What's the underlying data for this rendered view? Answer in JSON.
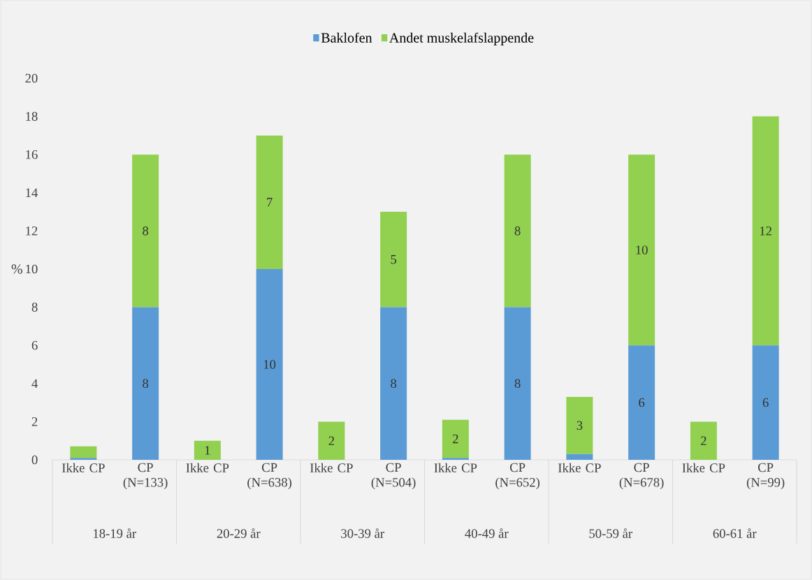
{
  "chart_data": {
    "type": "bar",
    "stacked": true,
    "ylabel": "%",
    "categories": [
      "Ikke CP",
      "CP (N=133)",
      "Ikke CP",
      "CP (N=638)",
      "Ikke CP",
      "CP (N=504)",
      "Ikke CP",
      "CP (N=652)",
      "Ikke CP",
      "CP (N=678)",
      "Ikke CP",
      "CP (N=99)"
    ],
    "series": [
      {
        "name": "Baklofen",
        "color": "#5b9bd5",
        "values": [
          0.1,
          8,
          0,
          10,
          0,
          8,
          0.1,
          8,
          0.3,
          6,
          0,
          6
        ],
        "value_labels": [
          null,
          "8",
          null,
          "10",
          null,
          "8",
          null,
          "8",
          null,
          "6",
          null,
          "6"
        ]
      },
      {
        "name": "Andet muskelafslappende",
        "color": "#92d050",
        "values": [
          0.6,
          8,
          1,
          7,
          2,
          5,
          2,
          8,
          3,
          10,
          2,
          12
        ],
        "value_labels": [
          null,
          "8",
          "1",
          "7",
          "2",
          "5",
          "2",
          "8",
          "3",
          "10",
          "2",
          "12"
        ]
      }
    ],
    "annotations": [
      "18-19 år",
      "20-29 år",
      "30-39 år",
      "40-49 år",
      "50-59 år",
      "60-61 år"
    ],
    "ylim": [
      0,
      20
    ],
    "yticks": [
      0,
      2,
      4,
      6,
      8,
      10,
      12,
      14,
      16,
      18,
      20
    ],
    "legend": "top"
  }
}
